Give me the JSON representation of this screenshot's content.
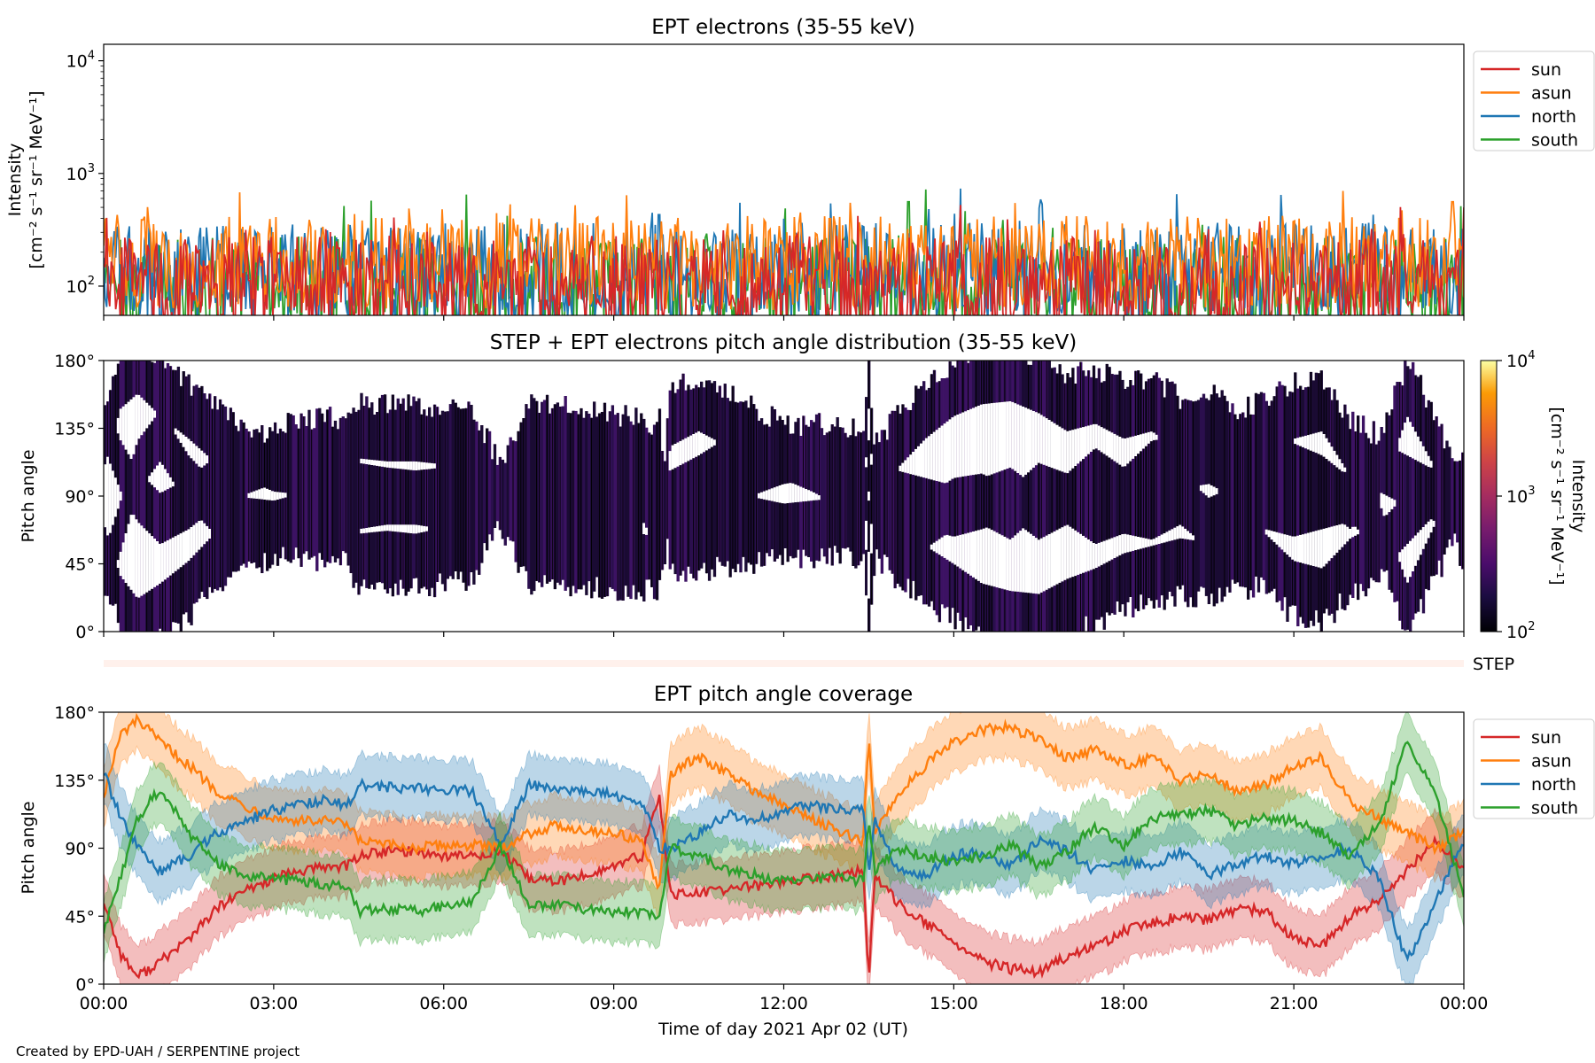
{
  "credit": "Created by EPD-UAH / SERPENTINE project",
  "xaxis": {
    "label": "Time of day 2021 Apr 02 (UT)",
    "ticks": [
      "00:00",
      "03:00",
      "06:00",
      "09:00",
      "12:00",
      "15:00",
      "18:00",
      "21:00",
      "00:00"
    ],
    "range_hours": [
      0,
      24
    ]
  },
  "colors": {
    "sun": "#d62728",
    "asun": "#ff7f0e",
    "north": "#1f77b4",
    "south": "#2ca02c",
    "step_bar": "#fff1ec"
  },
  "chart_data": [
    {
      "type": "line",
      "title": "EPT electrons (35-55 keV)",
      "ylabel": "Intensity",
      "yunit": "[cm⁻² s⁻¹ sr⁻¹ MeV⁻¹]",
      "yscale": "log",
      "ylim": [
        55,
        14000
      ],
      "yticks": [
        {
          "value": 100,
          "exp": "2"
        },
        {
          "value": 1000,
          "exp": "3"
        },
        {
          "value": 10000,
          "exp": "4"
        }
      ],
      "legend": [
        "sun",
        "asun",
        "north",
        "south"
      ],
      "legend_position": "outside-right",
      "series": [
        {
          "name": "sun",
          "typical": 100,
          "spread": 0.45,
          "spikes": [
            {
              "t": 19.5,
              "v": 320
            },
            {
              "t": 23.9,
              "v": 210
            }
          ]
        },
        {
          "name": "asun",
          "typical": 160,
          "spread": 0.42,
          "spikes": [
            {
              "t": 2.4,
              "v": 680
            },
            {
              "t": 12.3,
              "v": 450
            },
            {
              "t": 23.8,
              "v": 560
            }
          ]
        },
        {
          "name": "north",
          "typical": 130,
          "spread": 0.45,
          "spikes": [
            {
              "t": 9.8,
              "v": 430
            },
            {
              "t": 22.4,
              "v": 430
            }
          ]
        },
        {
          "name": "south",
          "typical": 100,
          "spread": 0.45,
          "spikes": [
            {
              "t": 6.4,
              "v": 650
            },
            {
              "t": 14.5,
              "v": 720
            },
            {
              "t": 14.2,
              "v": 560
            }
          ]
        }
      ]
    },
    {
      "type": "heatmap",
      "title": "STEP + EPT electrons pitch angle distribution (35-55 keV)",
      "ylabel": "Pitch angle",
      "yticks": [
        "0°",
        "45°",
        "90°",
        "135°",
        "180°"
      ],
      "ylim": [
        0,
        180
      ],
      "colorbar": {
        "label": "Intensity",
        "unit": "[cm⁻² s⁻¹ sr⁻¹ MeV⁻¹]",
        "range": [
          100,
          10000
        ],
        "scale": "log",
        "ticks": [
          {
            "value": 100,
            "exp": "2"
          },
          {
            "value": 1000,
            "exp": "3"
          },
          {
            "value": 10000,
            "exp": "4"
          }
        ],
        "colormap": "inferno"
      }
    },
    {
      "type": "bar",
      "label": "STEP"
    },
    {
      "type": "area",
      "title": "EPT pitch angle coverage",
      "ylabel": "Pitch angle",
      "yticks": [
        "0°",
        "45°",
        "90°",
        "135°",
        "180°"
      ],
      "ylim": [
        0,
        180
      ],
      "legend": [
        "sun",
        "asun",
        "north",
        "south"
      ],
      "legend_position": "outside-right",
      "band_halfwidth_deg": 20,
      "series": [
        {
          "name": "sun",
          "t": [
            0,
            0.3,
            0.6,
            1.0,
            1.5,
            2.0,
            2.5,
            3.0,
            3.5,
            4.0,
            4.3,
            4.5,
            5.0,
            5.5,
            6.0,
            6.5,
            7.0,
            7.5,
            8.0,
            8.5,
            9.0,
            9.5,
            9.8,
            10.0,
            10.5,
            11.0,
            11.5,
            12.0,
            12.5,
            13.0,
            13.4,
            13.5,
            13.6,
            14.0,
            14.5,
            15.0,
            15.5,
            16.0,
            16.5,
            17.0,
            17.5,
            18.0,
            18.5,
            19.0,
            19.5,
            20.0,
            20.5,
            21.0,
            21.5,
            22.0,
            22.5,
            23.0,
            23.5,
            24.0
          ],
          "y": [
            55,
            20,
            5,
            15,
            30,
            50,
            62,
            70,
            75,
            78,
            78,
            85,
            88,
            88,
            85,
            85,
            88,
            70,
            68,
            72,
            78,
            85,
            125,
            60,
            60,
            63,
            65,
            68,
            70,
            72,
            75,
            5,
            70,
            55,
            40,
            28,
            15,
            10,
            8,
            18,
            25,
            35,
            40,
            45,
            42,
            50,
            48,
            30,
            25,
            45,
            55,
            75,
            95,
            75
          ]
        },
        {
          "name": "asun",
          "t": [
            0,
            0.3,
            0.6,
            1.0,
            1.5,
            2.0,
            2.5,
            3.0,
            3.5,
            4.0,
            4.3,
            4.5,
            5.0,
            5.5,
            6.0,
            6.5,
            7.0,
            7.5,
            8.0,
            8.5,
            9.0,
            9.5,
            9.8,
            10.0,
            10.5,
            11.0,
            11.5,
            12.0,
            12.5,
            13.0,
            13.4,
            13.5,
            13.6,
            14.0,
            14.5,
            15.0,
            15.5,
            16.0,
            16.5,
            17.0,
            17.5,
            18.0,
            18.5,
            19.0,
            19.5,
            20.0,
            20.5,
            21.0,
            21.5,
            22.0,
            22.5,
            23.0,
            23.5,
            24.0
          ],
          "y": [
            125,
            165,
            175,
            160,
            145,
            128,
            118,
            110,
            108,
            108,
            105,
            95,
            92,
            90,
            92,
            92,
            90,
            100,
            105,
            102,
            100,
            95,
            60,
            140,
            150,
            140,
            128,
            118,
            110,
            100,
            95,
            165,
            100,
            125,
            145,
            160,
            168,
            170,
            162,
            150,
            155,
            145,
            150,
            135,
            140,
            128,
            132,
            145,
            150,
            120,
            110,
            100,
            90,
            100
          ]
        },
        {
          "name": "north",
          "t": [
            0,
            0.3,
            0.6,
            1.0,
            1.5,
            2.0,
            2.5,
            3.0,
            3.5,
            4.0,
            4.3,
            4.5,
            5.0,
            5.5,
            6.0,
            6.5,
            7.0,
            7.5,
            8.0,
            8.5,
            9.0,
            9.5,
            9.8,
            10.0,
            10.5,
            11.0,
            11.5,
            12.0,
            12.5,
            13.0,
            13.4,
            13.5,
            13.6,
            14.0,
            14.5,
            15.0,
            15.5,
            16.0,
            16.5,
            17.0,
            17.5,
            18.0,
            18.5,
            19.0,
            19.5,
            20.0,
            20.5,
            21.0,
            21.5,
            22.0,
            22.5,
            23.0,
            23.5,
            24.0
          ],
          "y": [
            140,
            110,
            90,
            75,
            85,
            100,
            108,
            115,
            120,
            122,
            118,
            132,
            130,
            130,
            128,
            128,
            92,
            132,
            130,
            128,
            125,
            120,
            90,
            90,
            100,
            112,
            108,
            115,
            118,
            115,
            118,
            70,
            110,
            75,
            72,
            85,
            88,
            78,
            95,
            88,
            75,
            82,
            78,
            88,
            72,
            80,
            85,
            80,
            85,
            90,
            70,
            15,
            55,
            95
          ]
        },
        {
          "name": "south",
          "t": [
            0,
            0.3,
            0.6,
            1.0,
            1.5,
            2.0,
            2.5,
            3.0,
            3.5,
            4.0,
            4.3,
            4.5,
            5.0,
            5.5,
            6.0,
            6.5,
            7.0,
            7.5,
            8.0,
            8.5,
            9.0,
            9.5,
            9.8,
            10.0,
            10.5,
            11.0,
            11.5,
            12.0,
            12.5,
            13.0,
            13.4,
            13.5,
            13.6,
            14.0,
            14.5,
            15.0,
            15.5,
            16.0,
            16.5,
            17.0,
            17.5,
            18.0,
            18.5,
            19.0,
            19.5,
            20.0,
            20.5,
            21.0,
            21.5,
            22.0,
            22.5,
            23.0,
            23.5,
            24.0
          ],
          "y": [
            35,
            70,
            110,
            130,
            100,
            80,
            72,
            70,
            68,
            65,
            66,
            48,
            50,
            48,
            52,
            55,
            92,
            52,
            52,
            50,
            48,
            48,
            45,
            90,
            85,
            75,
            72,
            68,
            70,
            70,
            68,
            110,
            75,
            90,
            85,
            80,
            85,
            92,
            78,
            88,
            105,
            92,
            110,
            112,
            115,
            105,
            110,
            108,
            100,
            85,
            105,
            160,
            125,
            60
          ]
        }
      ]
    }
  ]
}
